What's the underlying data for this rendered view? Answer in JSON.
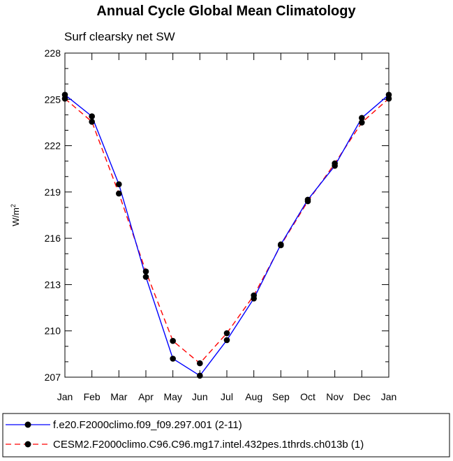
{
  "chart_data": {
    "type": "line",
    "title": "Annual Cycle Global Mean Climatology",
    "subtitle": "Surf clearsky net SW",
    "xlabel": "",
    "ylabel": "W/m",
    "ylabel_sup": "2",
    "categories": [
      "Jan",
      "Feb",
      "Mar",
      "Apr",
      "May",
      "Jun",
      "Jul",
      "Aug",
      "Sep",
      "Oct",
      "Nov",
      "Dec",
      "Jan"
    ],
    "yticks": [
      207,
      210,
      213,
      216,
      219,
      222,
      225,
      228
    ],
    "ylim": [
      207,
      228
    ],
    "legend_position": "bottom",
    "series": [
      {
        "name": "f.e20.F2000climo.f09_f09.297.001 (2-11)",
        "color": "#0000ff",
        "dash": "solid",
        "values": [
          225.3,
          223.9,
          219.5,
          213.5,
          208.2,
          207.1,
          209.4,
          212.1,
          215.6,
          218.5,
          220.7,
          223.8,
          225.3
        ]
      },
      {
        "name": "CESM2.F2000climo.C96.C96.mg17.intel.432pes.1thrds.ch013b (1)",
        "color": "#ff0000",
        "dash": "dashed",
        "values": [
          225.05,
          223.55,
          218.9,
          213.85,
          209.35,
          207.9,
          209.85,
          212.3,
          215.55,
          218.4,
          220.85,
          223.5,
          225.05
        ]
      }
    ]
  }
}
